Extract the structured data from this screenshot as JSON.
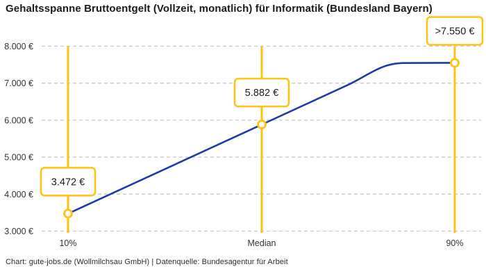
{
  "page": {
    "title": "Gehaltsspanne Bruttoentgelt (Vollzeit, monatlich) für Informatik (Bundesland Bayern)",
    "attribution": "Chart: gute-jobs.de (Wollmilchsau GmbH) | Datenquelle: Bundesagentur für Arbeit"
  },
  "colors": {
    "accent_yellow": "#FFC20E",
    "line_blue": "#1E3AA8",
    "grid_gray": "#C7C7C7",
    "text_primary": "#1A1A1A",
    "text_secondary": "#333333",
    "background": "#FFFFFF",
    "callout_fill": "#FFFFFF"
  },
  "chart_data": {
    "type": "line",
    "title": "Gehaltsspanne Bruttoentgelt (Vollzeit, monatlich) für Informatik (Bundesland Bayern)",
    "categories": [
      "10%",
      "Median",
      "90%"
    ],
    "values": [
      3472,
      5882,
      7550
    ],
    "point_labels": [
      "3.472 €",
      "5.882 €",
      ">7.550 €"
    ],
    "last_value_open_ended": true,
    "ylim": [
      3000,
      8000
    ],
    "y_tick_step": 1000,
    "y_tick_labels": [
      "3.000 €",
      "4.000 €",
      "5.000 €",
      "6.000 €",
      "7.000 €",
      "8.000 €"
    ],
    "xlabel": "",
    "ylabel": "",
    "grid": "horizontal-dashed",
    "legend": "none",
    "marker": "open-circle",
    "guide_lines": "vertical-at-each-category",
    "curve_shape": "linear from 10% through Median, easing into a plateau at the 90% value"
  }
}
